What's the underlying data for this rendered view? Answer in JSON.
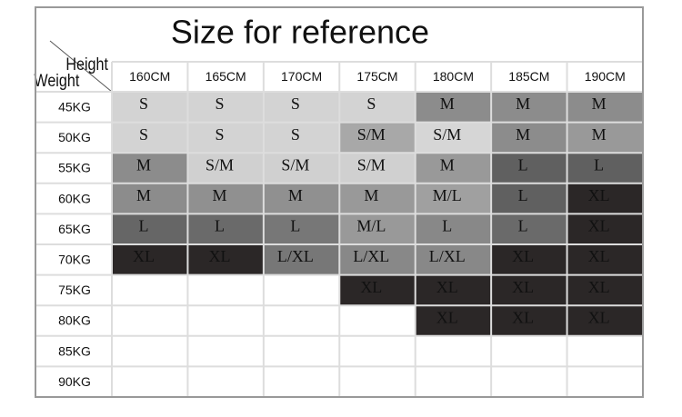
{
  "title": "Size for reference",
  "corner": {
    "height": "Height",
    "weight": "Weight"
  },
  "columns": [
    "160CM",
    "165CM",
    "170CM",
    "175CM",
    "180CM",
    "185CM",
    "190CM"
  ],
  "rows": [
    {
      "label": "45KG",
      "cells": [
        {
          "text": "S",
          "color": "#d3d3d3"
        },
        {
          "text": "S",
          "color": "#d3d3d3"
        },
        {
          "text": "S",
          "color": "#d3d3d3"
        },
        {
          "text": "S",
          "color": "#d3d3d3"
        },
        {
          "text": "M",
          "color": "#8c8c8c"
        },
        {
          "text": "M",
          "color": "#8c8c8c"
        },
        {
          "text": "M",
          "color": "#8c8c8c"
        }
      ]
    },
    {
      "label": "50KG",
      "cells": [
        {
          "text": "S",
          "color": "#d3d3d3"
        },
        {
          "text": "S",
          "color": "#d3d3d3"
        },
        {
          "text": "S",
          "color": "#d3d3d3"
        },
        {
          "text": "S/M",
          "color": "#a8a8a8"
        },
        {
          "text": "S/M",
          "color": "#d6d6d6"
        },
        {
          "text": "M",
          "color": "#8c8c8c"
        },
        {
          "text": "M",
          "color": "#999999"
        }
      ]
    },
    {
      "label": "55KG",
      "cells": [
        {
          "text": "M",
          "color": "#8c8c8c"
        },
        {
          "text": "S/M",
          "color": "#d0d0d0"
        },
        {
          "text": "S/M",
          "color": "#d0d0d0"
        },
        {
          "text": "S/M",
          "color": "#d0d0d0"
        },
        {
          "text": "M",
          "color": "#999999"
        },
        {
          "text": "L",
          "color": "#606060"
        },
        {
          "text": "L",
          "color": "#606060"
        }
      ]
    },
    {
      "label": "60KG",
      "cells": [
        {
          "text": "M",
          "color": "#8c8c8c"
        },
        {
          "text": "M",
          "color": "#909090"
        },
        {
          "text": "M",
          "color": "#909090"
        },
        {
          "text": "M",
          "color": "#999999"
        },
        {
          "text": "M/L",
          "color": "#a0a0a0"
        },
        {
          "text": "L",
          "color": "#606060"
        },
        {
          "text": "XL",
          "color": "#2b2727"
        }
      ]
    },
    {
      "label": "65KG",
      "cells": [
        {
          "text": "L",
          "color": "#666666"
        },
        {
          "text": "L",
          "color": "#6a6a6a"
        },
        {
          "text": "L",
          "color": "#777777"
        },
        {
          "text": "M/L",
          "color": "#999999"
        },
        {
          "text": "L",
          "color": "#888888"
        },
        {
          "text": "L",
          "color": "#6a6a6a"
        },
        {
          "text": "XL",
          "color": "#2b2727"
        }
      ]
    },
    {
      "label": "70KG",
      "cells": [
        {
          "text": "XL",
          "color": "#2b2727"
        },
        {
          "text": "XL",
          "color": "#2b2727"
        },
        {
          "text": "L/XL",
          "color": "#777777"
        },
        {
          "text": "L/XL",
          "color": "#888888"
        },
        {
          "text": "L/XL",
          "color": "#888888"
        },
        {
          "text": "XL",
          "color": "#2b2727"
        },
        {
          "text": "XL",
          "color": "#2b2727"
        }
      ]
    },
    {
      "label": "75KG",
      "cells": [
        null,
        null,
        null,
        {
          "text": "XL",
          "color": "#2b2727"
        },
        {
          "text": "XL",
          "color": "#2b2727"
        },
        {
          "text": "XL",
          "color": "#2b2727"
        },
        {
          "text": "XL",
          "color": "#2b2727"
        }
      ]
    },
    {
      "label": "80KG",
      "cells": [
        null,
        null,
        null,
        null,
        {
          "text": "XL",
          "color": "#2b2727"
        },
        {
          "text": "XL",
          "color": "#2b2727"
        },
        {
          "text": "XL",
          "color": "#2b2727"
        }
      ]
    },
    {
      "label": "85KG",
      "cells": [
        null,
        null,
        null,
        null,
        null,
        null,
        null
      ]
    },
    {
      "label": "90KG",
      "cells": [
        null,
        null,
        null,
        null,
        null,
        null,
        null
      ]
    }
  ]
}
